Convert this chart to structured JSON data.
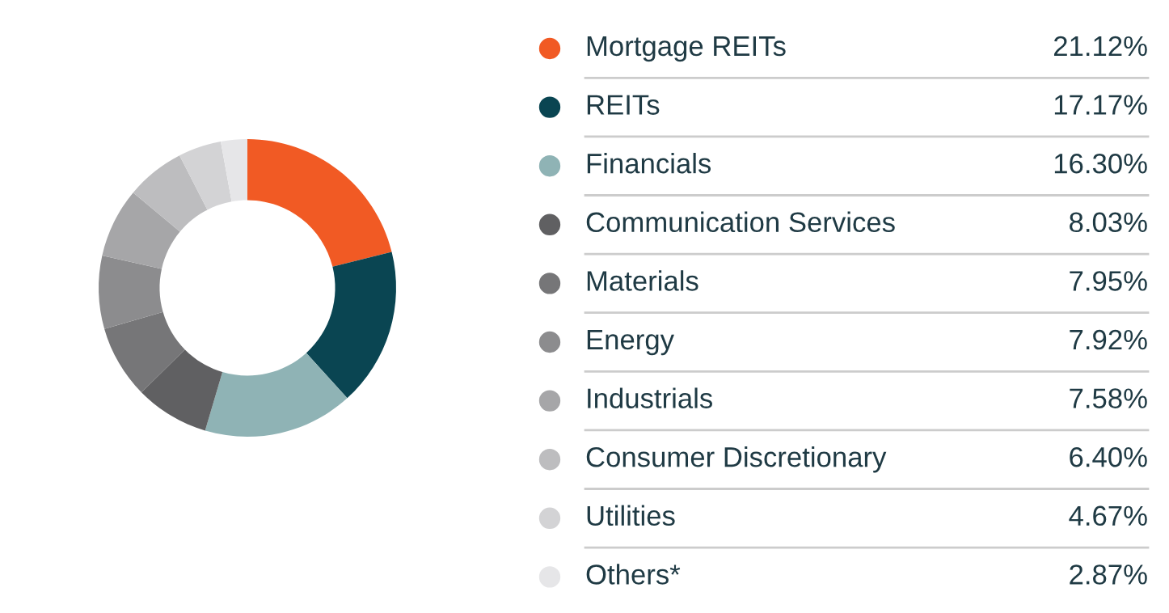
{
  "chart_data": {
    "type": "donut",
    "categories": [
      "Mortgage REITs",
      "REITs",
      "Financials",
      "Communication Services",
      "Materials",
      "Energy",
      "Industrials",
      "Consumer Discretionary",
      "Utilities",
      "Others*"
    ],
    "values": [
      21.12,
      17.17,
      16.3,
      8.03,
      7.95,
      7.92,
      7.58,
      6.4,
      4.67,
      2.87
    ],
    "value_labels": [
      "21.12%",
      "17.17%",
      "16.30%",
      "8.03%",
      "7.95%",
      "7.92%",
      "7.58%",
      "6.40%",
      "4.67%",
      "2.87%"
    ],
    "colors": [
      "#f15a24",
      "#0a4552",
      "#8fb3b5",
      "#606062",
      "#767678",
      "#8c8c8e",
      "#a6a6a8",
      "#bdbdbf",
      "#d3d3d5",
      "#e6e6e8"
    ],
    "legend": "right"
  }
}
